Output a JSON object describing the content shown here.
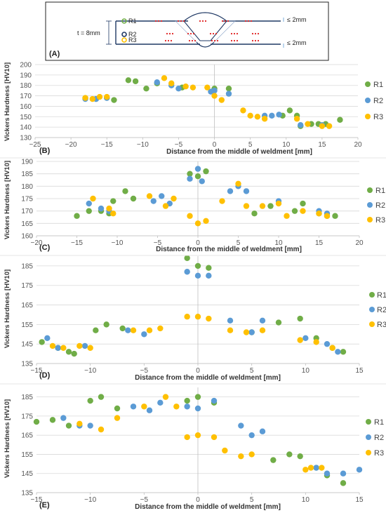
{
  "colors": {
    "R1": "#70ad47",
    "R2": "#5b9bd5",
    "R3": "#ffc000",
    "grid": "#d9d9d9",
    "rm": "#e02020",
    "weld": "#1f3864"
  },
  "schematic": {
    "panel_label": "(A)",
    "thickness_label": "t = 8mm",
    "rows": [
      "R1",
      "R2",
      "R3"
    ],
    "top_dim": "≤ 2mm",
    "bottom_dim": "≤ 2mm"
  },
  "chart_data": [
    {
      "type": "scatter",
      "panel_label": "(B)",
      "xlabel": "Distance from the middle of weldment [mm]",
      "ylabel": "Vickers Hardness [HV10]",
      "xlim": [
        -25,
        20
      ],
      "ylim": [
        130,
        200
      ],
      "xstep": 5,
      "ystep": 10,
      "x_ticks": [
        "−25",
        "−20",
        "−15",
        "−10",
        "−5",
        "0",
        "5",
        "10",
        "15",
        "20"
      ],
      "y_ticks": [
        "130",
        "140",
        "150",
        "160",
        "170",
        "180",
        "190",
        "200"
      ],
      "grid": "horizontal",
      "legend": "right",
      "series": [
        {
          "name": "R1",
          "points": [
            [
              -18,
              168
            ],
            [
              -16.5,
              167
            ],
            [
              -15,
              168
            ],
            [
              -14,
              166
            ],
            [
              -12,
              185
            ],
            [
              -11,
              184
            ],
            [
              -9.5,
              177
            ],
            [
              -8,
              182
            ],
            [
              -4.5,
              178
            ],
            [
              0,
              177
            ],
            [
              2,
              177
            ],
            [
              9.5,
              151
            ],
            [
              10.5,
              156
            ],
            [
              11.5,
              151
            ],
            [
              12,
              141
            ],
            [
              13.5,
              143
            ],
            [
              14.5,
              143
            ],
            [
              15.5,
              143
            ],
            [
              17.5,
              147
            ]
          ]
        },
        {
          "name": "R2",
          "points": [
            [
              -18,
              167
            ],
            [
              -16.5,
              167
            ],
            [
              -15,
              168
            ],
            [
              -8,
              183
            ],
            [
              -6,
              180
            ],
            [
              -5,
              177
            ],
            [
              -0.5,
              174
            ],
            [
              0,
              175
            ],
            [
              2,
              172
            ],
            [
              7,
              151
            ],
            [
              8,
              151
            ],
            [
              9,
              152
            ],
            [
              12,
              142
            ],
            [
              15,
              142
            ]
          ]
        },
        {
          "name": "R3",
          "points": [
            [
              -18,
              168
            ],
            [
              -17,
              167
            ],
            [
              -16,
              169
            ],
            [
              -15,
              169
            ],
            [
              -7,
              187
            ],
            [
              -6,
              182
            ],
            [
              -4,
              179
            ],
            [
              -3,
              178
            ],
            [
              -1,
              178
            ],
            [
              0,
              170
            ],
            [
              1,
              166
            ],
            [
              4,
              156
            ],
            [
              5,
              151
            ],
            [
              6,
              150
            ],
            [
              7,
              148
            ],
            [
              11.5,
              148
            ],
            [
              13,
              143
            ],
            [
              15,
              141
            ],
            [
              16,
              141
            ]
          ]
        }
      ]
    },
    {
      "type": "scatter",
      "panel_label": "(C)",
      "xlabel": "Distance from the middle of weldment [mm]",
      "ylabel": "Vickers Hardness [HV10]",
      "xlim": [
        -20,
        20
      ],
      "ylim": [
        160,
        190
      ],
      "xstep": 5,
      "ystep": 5,
      "x_ticks": [
        "−20",
        "−15",
        "−10",
        "−5",
        "0",
        "5",
        "10",
        "15",
        "20"
      ],
      "y_ticks": [
        "160",
        "165",
        "170",
        "175",
        "180",
        "185",
        "190"
      ],
      "grid": "horizontal",
      "legend": "right",
      "series": [
        {
          "name": "R1",
          "points": [
            [
              -15,
              168
            ],
            [
              -13.5,
              170
            ],
            [
              -12,
              170
            ],
            [
              -11,
              169
            ],
            [
              -10.5,
              174
            ],
            [
              -9,
              178
            ],
            [
              -8,
              175
            ],
            [
              -1,
              185
            ],
            [
              0,
              184
            ],
            [
              1,
              186
            ],
            [
              7,
              169
            ],
            [
              9,
              172
            ],
            [
              12,
              170
            ],
            [
              13,
              173
            ],
            [
              15,
              169
            ],
            [
              16,
              168
            ],
            [
              17,
              168
            ]
          ]
        },
        {
          "name": "R2",
          "points": [
            [
              -13.5,
              173
            ],
            [
              -12,
              171
            ],
            [
              -11,
              170
            ],
            [
              -5.5,
              174
            ],
            [
              -4.5,
              176
            ],
            [
              -3.5,
              173
            ],
            [
              -1,
              183
            ],
            [
              0,
              187
            ],
            [
              0.5,
              182
            ],
            [
              4,
              178
            ],
            [
              5,
              180
            ],
            [
              6,
              178
            ],
            [
              10,
              174
            ],
            [
              15,
              170
            ],
            [
              16,
              169
            ]
          ]
        },
        {
          "name": "R3",
          "points": [
            [
              -13,
              175
            ],
            [
              -11,
              171
            ],
            [
              -10.5,
              169
            ],
            [
              -6,
              176
            ],
            [
              -4,
              172
            ],
            [
              -3,
              175
            ],
            [
              -1,
              168
            ],
            [
              0,
              165
            ],
            [
              1,
              166
            ],
            [
              3,
              174
            ],
            [
              5,
              181
            ],
            [
              6,
              172
            ],
            [
              8,
              172
            ],
            [
              10,
              173
            ],
            [
              11,
              168
            ],
            [
              13,
              170
            ],
            [
              15,
              169
            ],
            [
              16,
              168
            ]
          ]
        }
      ]
    },
    {
      "type": "scatter",
      "panel_label": "(D)",
      "xlabel": "Distance from the middle of weldment [mm]",
      "ylabel": "Vickers Hardness [HV10]",
      "xlim": [
        -15,
        15
      ],
      "ylim": [
        135,
        190
      ],
      "xstep": 5,
      "ystep": 10,
      "x_ticks": [
        "−15",
        "−10",
        "−5",
        "0",
        "5",
        "10",
        "15"
      ],
      "y_ticks": [
        "135",
        "145",
        "155",
        "165",
        "175",
        "185"
      ],
      "grid": "horizontal",
      "legend": "right",
      "series": [
        {
          "name": "R1",
          "points": [
            [
              -14.5,
              146
            ],
            [
              -13,
              143
            ],
            [
              -12,
              141
            ],
            [
              -11.5,
              140
            ],
            [
              -9.5,
              152
            ],
            [
              -8.5,
              155
            ],
            [
              -7,
              153
            ],
            [
              -1,
              189
            ],
            [
              0,
              185
            ],
            [
              1,
              184
            ],
            [
              5,
              151
            ],
            [
              7.5,
              156
            ],
            [
              9.5,
              158
            ],
            [
              11,
              148
            ],
            [
              12.5,
              143
            ],
            [
              13.5,
              141
            ]
          ]
        },
        {
          "name": "R2",
          "points": [
            [
              -14,
              148
            ],
            [
              -13,
              143
            ],
            [
              -10.5,
              144
            ],
            [
              -6.5,
              152
            ],
            [
              -5,
              150
            ],
            [
              -1,
              182
            ],
            [
              0,
              180
            ],
            [
              1,
              180
            ],
            [
              3,
              157
            ],
            [
              5,
              151
            ],
            [
              6,
              157
            ],
            [
              10,
              148
            ],
            [
              12,
              145
            ],
            [
              13,
              141
            ]
          ]
        },
        {
          "name": "R3",
          "points": [
            [
              -13.5,
              144
            ],
            [
              -12.5,
              143
            ],
            [
              -11,
              144
            ],
            [
              -10,
              143
            ],
            [
              -6,
              152
            ],
            [
              -4.5,
              152
            ],
            [
              -3.5,
              153
            ],
            [
              -1,
              159
            ],
            [
              0,
              159
            ],
            [
              1,
              158
            ],
            [
              3,
              152
            ],
            [
              4.5,
              151
            ],
            [
              6,
              152
            ],
            [
              9.5,
              147
            ],
            [
              11,
              146
            ],
            [
              12.5,
              143
            ]
          ]
        }
      ]
    },
    {
      "type": "scatter",
      "panel_label": "(E)",
      "xlabel": "Distance from the middle of weldment [mm]",
      "ylabel": "Vickers Hardness [HV10]",
      "xlim": [
        -15,
        15
      ],
      "ylim": [
        135,
        190
      ],
      "xstep": 5,
      "ystep": 10,
      "x_ticks": [
        "−15",
        "−10",
        "−5",
        "0",
        "5",
        "10",
        "15"
      ],
      "y_ticks": [
        "135",
        "145",
        "155",
        "165",
        "175",
        "185"
      ],
      "grid": "horizontal",
      "legend": "right",
      "series": [
        {
          "name": "R1",
          "points": [
            [
              -15,
              172
            ],
            [
              -13.5,
              173
            ],
            [
              -12,
              170
            ],
            [
              -10,
              183
            ],
            [
              -9,
              185
            ],
            [
              -7.5,
              179
            ],
            [
              -1,
              183
            ],
            [
              0,
              185
            ],
            [
              1.5,
              182
            ],
            [
              7,
              152
            ],
            [
              8.5,
              155
            ],
            [
              9.5,
              154
            ],
            [
              11,
              148
            ],
            [
              12,
              144
            ],
            [
              13.5,
              140
            ]
          ]
        },
        {
          "name": "R2",
          "points": [
            [
              -12.5,
              174
            ],
            [
              -11,
              170
            ],
            [
              -10,
              170
            ],
            [
              -6,
              180
            ],
            [
              -4.5,
              178
            ],
            [
              -3.5,
              182
            ],
            [
              -1,
              180
            ],
            [
              0,
              179
            ],
            [
              1.5,
              183
            ],
            [
              4,
              170
            ],
            [
              5,
              165
            ],
            [
              6,
              167
            ],
            [
              11,
              148
            ],
            [
              12,
              145
            ],
            [
              13.5,
              145
            ],
            [
              15,
              147
            ]
          ]
        },
        {
          "name": "R3",
          "points": [
            [
              -11,
              171
            ],
            [
              -9,
              168
            ],
            [
              -7.5,
              174
            ],
            [
              -5,
              180
            ],
            [
              -3,
              185
            ],
            [
              -2,
              180
            ],
            [
              -1,
              164
            ],
            [
              0,
              165
            ],
            [
              1.5,
              164
            ],
            [
              2.5,
              157
            ],
            [
              4,
              154
            ],
            [
              5,
              155
            ],
            [
              10,
              147
            ],
            [
              10.5,
              148
            ],
            [
              11.5,
              148
            ]
          ]
        }
      ]
    }
  ]
}
